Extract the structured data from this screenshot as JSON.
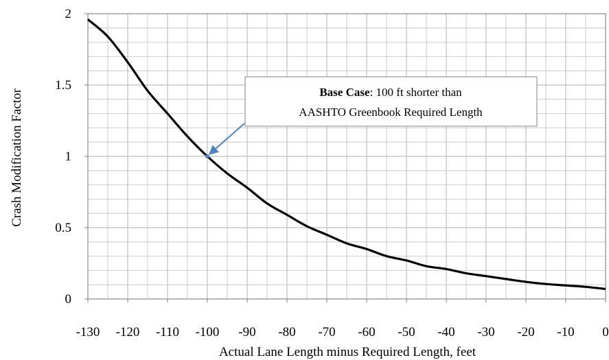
{
  "chart_data": {
    "type": "line",
    "title": "",
    "xlabel": "Actual Lane Length minus Required Length, feet",
    "ylabel": "Crash Modification Factor",
    "xlim": [
      -130,
      0
    ],
    "ylim": [
      0,
      2
    ],
    "x_ticks": [
      "-130",
      "-120",
      "-110",
      "-100",
      "-90",
      "-80",
      "-70",
      "-60",
      "-50",
      "-40",
      "-30",
      "-20",
      "-10",
      "0"
    ],
    "y_ticks": [
      "0",
      "0.5",
      "1",
      "1.5",
      "2"
    ],
    "grid": true,
    "minor_grid": true,
    "legend": "none",
    "series": [
      {
        "color": "#000000",
        "x": [
          -130,
          -125,
          -120,
          -115,
          -110,
          -105,
          -100,
          -95,
          -90,
          -85,
          -80,
          -75,
          -70,
          -65,
          -60,
          -55,
          -50,
          -45,
          -40,
          -35,
          -30,
          -25,
          -20,
          -15,
          -10,
          -5,
          0
        ],
        "y": [
          1.96,
          1.84,
          1.66,
          1.46,
          1.3,
          1.14,
          1.0,
          0.88,
          0.78,
          0.67,
          0.59,
          0.51,
          0.45,
          0.39,
          0.35,
          0.3,
          0.27,
          0.23,
          0.21,
          0.18,
          0.16,
          0.14,
          0.12,
          0.105,
          0.095,
          0.085,
          0.07
        ]
      }
    ],
    "annotation": {
      "bold_text": "Base Case",
      "line1_rest": ": 100 ft shorter than",
      "line2": "AASHTO Greenbook Required Length",
      "point": {
        "x": -100,
        "y": 1.0
      },
      "arrow_color": "#4f81bd"
    }
  }
}
